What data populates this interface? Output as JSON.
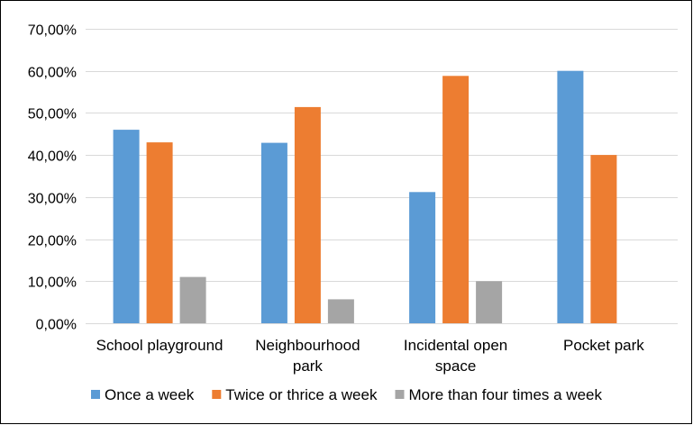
{
  "chart_data": {
    "type": "bar",
    "categories": [
      [
        "School playground"
      ],
      [
        "Neighbourhood",
        "park"
      ],
      [
        "Incidental open",
        "space"
      ],
      [
        "Pocket park"
      ]
    ],
    "series": [
      {
        "name": "Once a week",
        "color": "#5b9bd5",
        "values": [
          46.0,
          42.9,
          31.2,
          60.0
        ]
      },
      {
        "name": "Twice or thrice a week",
        "color": "#ed7d31",
        "values": [
          43.0,
          51.4,
          58.8,
          40.0
        ]
      },
      {
        "name": "More than four times a week",
        "color": "#a5a5a5",
        "values": [
          11.0,
          5.7,
          10.0,
          0
        ]
      }
    ],
    "ylim": [
      0,
      70
    ],
    "yticks": [
      0,
      10,
      20,
      30,
      40,
      50,
      60,
      70
    ],
    "ytick_labels": [
      "0,00%",
      "10,00%",
      "20,00%",
      "30,00%",
      "40,00%",
      "50,00%",
      "60,00%",
      "70,00%"
    ],
    "grid": true,
    "legend_position": "bottom",
    "gridline_color": "#d9d9d9",
    "border_color": "#000000"
  }
}
